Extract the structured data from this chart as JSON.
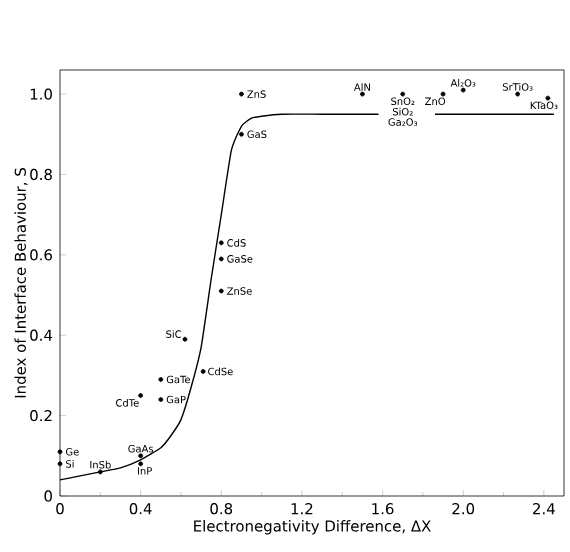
{
  "chart_data": {
    "type": "scatter",
    "xlabel": "Electronegativity  Difference, ΔX",
    "ylabel": "Index of Interface Behaviour, S",
    "xlim": [
      0,
      2.5
    ],
    "ylim": [
      0,
      1.06
    ],
    "xticks": [
      {
        "value": 0,
        "label": "0"
      },
      {
        "value": 0.4,
        "label": "0.4"
      },
      {
        "value": 0.8,
        "label": "0.8"
      },
      {
        "value": 1.2,
        "label": "1.2"
      },
      {
        "value": 1.6,
        "label": "1.6"
      },
      {
        "value": 2.0,
        "label": "2.0"
      },
      {
        "value": 2.4,
        "label": "2.4"
      }
    ],
    "yticks": [
      {
        "value": 0,
        "label": "0"
      },
      {
        "value": 0.2,
        "label": "0.2"
      },
      {
        "value": 0.4,
        "label": "0.4"
      },
      {
        "value": 0.6,
        "label": "0.6"
      },
      {
        "value": 0.8,
        "label": "0.8"
      },
      {
        "value": 1.0,
        "label": "1.0"
      }
    ],
    "grid": false,
    "series": [
      {
        "color": "#000000",
        "marker": "circle",
        "x": [
          0,
          0,
          0.2,
          0.4,
          0.4,
          0.4,
          0.5,
          0.5,
          0.62,
          0.71,
          0.8,
          0.8,
          0.8,
          0.9,
          0.9,
          1.5,
          1.7,
          1.9,
          2.0,
          2.27,
          2.42
        ],
        "values": [
          0.11,
          0.08,
          0.06,
          0.08,
          0.1,
          0.25,
          0.24,
          0.29,
          0.39,
          0.31,
          0.51,
          0.59,
          0.63,
          0.9,
          1.0,
          1.0,
          1.0,
          1.0,
          1.01,
          1.0,
          0.99
        ]
      },
      {
        "type": "line",
        "color": "#000000",
        "marker": "none",
        "x": [
          0,
          0.1,
          0.2,
          0.3,
          0.4,
          0.5,
          0.55,
          0.6,
          0.65,
          0.7,
          0.75,
          0.8,
          0.85,
          0.9,
          0.95,
          1.0,
          1.1,
          1.3,
          1.58,
          1.7,
          1.86,
          2.0,
          2.45
        ],
        "values": [
          0.04,
          0.05,
          0.06,
          0.07,
          0.09,
          0.12,
          0.15,
          0.19,
          0.27,
          0.37,
          0.54,
          0.7,
          0.86,
          0.92,
          0.94,
          0.945,
          0.95,
          0.95,
          0.95,
          null,
          0.95,
          0.95,
          0.95
        ]
      }
    ],
    "annotations": [
      {
        "text": "Ge",
        "x": 0,
        "y": 0.11
      },
      {
        "text": "Si",
        "x": 0,
        "y": 0.08
      },
      {
        "text": "InSb",
        "x": 0.2,
        "y": 0.06
      },
      {
        "text": "InP",
        "x": 0.4,
        "y": 0.08
      },
      {
        "text": "GaAs",
        "x": 0.4,
        "y": 0.1
      },
      {
        "text": "CdTe",
        "x": 0.4,
        "y": 0.25
      },
      {
        "text": "GaP",
        "x": 0.5,
        "y": 0.24
      },
      {
        "text": "GaTe",
        "x": 0.5,
        "y": 0.29
      },
      {
        "text": "SiC",
        "x": 0.62,
        "y": 0.39
      },
      {
        "text": "CdSe",
        "x": 0.71,
        "y": 0.31
      },
      {
        "text": "ZnSe",
        "x": 0.8,
        "y": 0.51
      },
      {
        "text": "GaSe",
        "x": 0.8,
        "y": 0.59
      },
      {
        "text": "CdS",
        "x": 0.8,
        "y": 0.63
      },
      {
        "text": "GaS",
        "x": 0.9,
        "y": 0.9
      },
      {
        "text": "ZnS",
        "x": 0.9,
        "y": 1.0
      },
      {
        "text": "AlN",
        "x": 1.5,
        "y": 1.0
      },
      {
        "text": "SnO₂",
        "x": 1.7,
        "y": 1.0
      },
      "SiO₂",
      "Ga₂O₃",
      {
        "text": "ZnO",
        "x": 1.9,
        "y": 1.0
      },
      {
        "text": "Al₂O₃",
        "x": 2.0,
        "y": 1.01
      },
      {
        "text": "SrTiO₃",
        "x": 2.27,
        "y": 1.0
      },
      {
        "text": "KTaO₃",
        "x": 2.42,
        "y": 0.99
      }
    ]
  }
}
